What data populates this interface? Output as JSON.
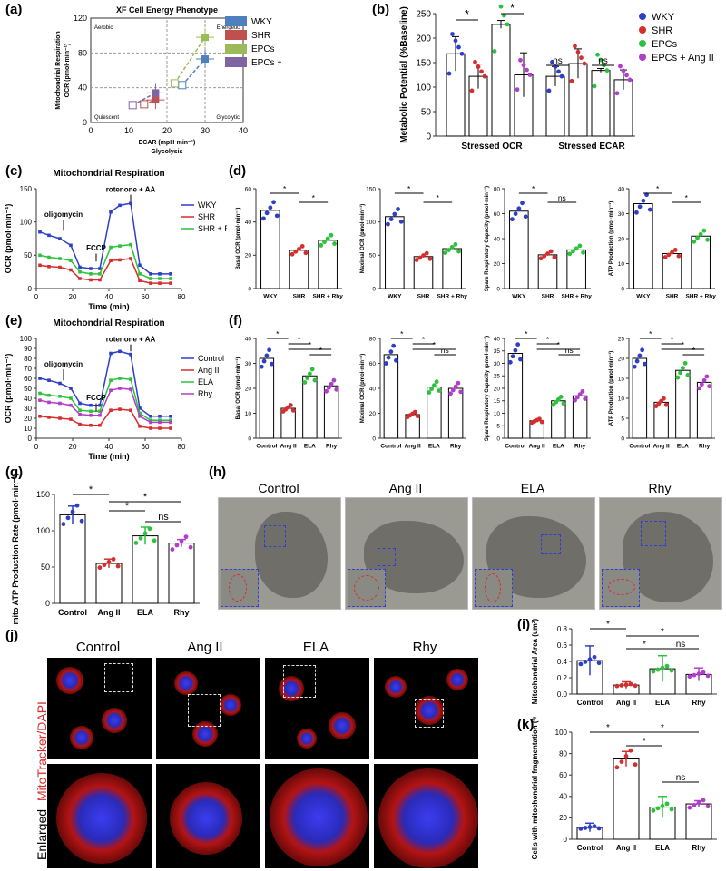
{
  "panel_labels": {
    "a": "(a)",
    "b": "(b)",
    "c": "(c)",
    "d": "(d)",
    "e": "(e)",
    "f": "(f)",
    "g": "(g)",
    "h": "(h)",
    "i": "(i)",
    "j": "(j)",
    "k": "(k)"
  },
  "chart_data": [
    {
      "id": "a",
      "type": "scatter",
      "title": "XF Cell Energy Phenotype",
      "xlabel": "ECAR (mpH·min⁻¹)",
      "xlabel2": "Glycolysis",
      "ylabel": "Mitochondrial Respiration",
      "ylabel2": "OCR (pmol·min⁻¹)",
      "xlim": [
        0,
        40
      ],
      "ylim": [
        0,
        120
      ],
      "xticks": [
        "0",
        "10",
        "20",
        "30",
        "40"
      ],
      "yticks": [
        "0",
        "40",
        "80",
        "120"
      ],
      "quadrants": [
        "Aerobic",
        "Energetic",
        "Quiescent",
        "Glycolytic"
      ],
      "legend": [
        "WKY",
        "SHR",
        "EPCs",
        "EPCs + Ang II"
      ],
      "colors": [
        "#4f7fbf",
        "#c0504d",
        "#9bbb59",
        "#8064a2"
      ],
      "series": [
        {
          "name": "WKY",
          "baseline": [
            24,
            43
          ],
          "stressed": [
            30,
            73
          ]
        },
        {
          "name": "SHR",
          "baseline": [
            14,
            21
          ],
          "stressed": [
            17,
            26
          ]
        },
        {
          "name": "EPCs",
          "baseline": [
            22,
            45
          ],
          "stressed": [
            30,
            98
          ]
        },
        {
          "name": "EPCs + Ang II",
          "baseline": [
            11,
            20
          ],
          "stressed": [
            17,
            34
          ]
        }
      ]
    },
    {
      "id": "b",
      "type": "bar",
      "ylabel": "Metabolic Potential (%Baseline)",
      "ylim": [
        0,
        250
      ],
      "yticks": [
        "0",
        "50",
        "100",
        "150",
        "200",
        "250"
      ],
      "categories": [
        "Stressed OCR",
        "Stressed ECAR"
      ],
      "legend": [
        "WKY",
        "SHR",
        "EPCs",
        "EPCs + Ang II"
      ],
      "series": [
        {
          "name": "WKY",
          "values": [
            168,
            122
          ]
        },
        {
          "name": "SHR",
          "values": [
            122,
            148
          ]
        },
        {
          "name": "EPCs",
          "values": [
            228,
            134
          ]
        },
        {
          "name": "EPCs + Ang II",
          "values": [
            125,
            115
          ]
        }
      ],
      "errors": [
        [
          35,
          20
        ],
        [
          25,
          30
        ],
        [
          8,
          4
        ],
        [
          45,
          20
        ]
      ],
      "sig": [
        "*",
        "*",
        "ns",
        "ns"
      ]
    },
    {
      "id": "c",
      "type": "line",
      "title": "Mitochondrial Respiration",
      "xlabel": "Time (min)",
      "ylabel": "OCR (pmol·min⁻¹)",
      "xlim": [
        0,
        80
      ],
      "ylim": [
        0,
        150
      ],
      "xticks": [
        "0",
        "20",
        "40",
        "60",
        "80"
      ],
      "yticks": [
        "0",
        "50",
        "100",
        "150"
      ],
      "annotations": [
        "oligomycin",
        "FCCP",
        "rotenone + AA"
      ],
      "x": [
        2,
        7,
        13,
        19,
        24,
        30,
        35,
        41,
        46,
        52,
        57,
        63,
        68,
        74
      ],
      "series": [
        {
          "name": "WKY",
          "color": "#2d3fc9",
          "values": [
            85,
            80,
            75,
            65,
            32,
            30,
            30,
            115,
            125,
            128,
            35,
            22,
            22,
            22
          ]
        },
        {
          "name": "SHR",
          "color": "#d62d2d",
          "values": [
            35,
            33,
            32,
            28,
            15,
            13,
            13,
            42,
            43,
            45,
            12,
            8,
            8,
            8
          ]
        },
        {
          "name": "SHR + Rhy",
          "color": "#2cc23c",
          "values": [
            50,
            47,
            45,
            42,
            25,
            22,
            22,
            62,
            64,
            66,
            22,
            15,
            15,
            15
          ]
        }
      ]
    },
    {
      "id": "d",
      "type": "bar",
      "categories": [
        "WKY",
        "SHR",
        "SHR + Rhy"
      ],
      "subplots": [
        {
          "ylabel": "Basal OCR (pmol·min⁻¹)",
          "ylim": [
            0,
            60
          ],
          "yticks": [
            "0",
            "20",
            "40",
            "60"
          ],
          "values": [
            47,
            23,
            29
          ],
          "sig": [
            "*",
            "*"
          ]
        },
        {
          "ylabel": "Maximal OCR (pmol·min⁻¹)",
          "ylim": [
            0,
            150
          ],
          "yticks": [
            "0",
            "50",
            "100",
            "150"
          ],
          "values": [
            108,
            48,
            60
          ],
          "sig": [
            "*",
            "*"
          ]
        },
        {
          "ylabel": "Spare Respiratory Capacity (pmol·min⁻¹)",
          "ylim": [
            0,
            80
          ],
          "yticks": [
            "0",
            "20",
            "40",
            "60",
            "80"
          ],
          "values": [
            62,
            27,
            31
          ],
          "sig": [
            "*",
            "ns"
          ]
        },
        {
          "ylabel": "ATP Production (pmol·min⁻¹)",
          "ylim": [
            0,
            40
          ],
          "yticks": [
            "0",
            "10",
            "20",
            "30",
            "40"
          ],
          "values": [
            34,
            14,
            21
          ],
          "sig": [
            "*",
            "*"
          ]
        }
      ]
    },
    {
      "id": "e",
      "type": "line",
      "title": "Mitochondrial Respiration",
      "xlabel": "Time (min)",
      "ylabel": "OCR (pmol·min⁻¹)",
      "xlim": [
        0,
        80
      ],
      "ylim": [
        0,
        100
      ],
      "xticks": [
        "0",
        "20",
        "40",
        "60",
        "80"
      ],
      "yticks": [
        "0",
        "10",
        "20",
        "30",
        "40",
        "50",
        "60",
        "70",
        "80",
        "90",
        "100"
      ],
      "annotations": [
        "oligomycin",
        "FCCP",
        "rotenone + AA"
      ],
      "x": [
        2,
        7,
        13,
        19,
        24,
        30,
        35,
        41,
        46,
        52,
        57,
        63,
        68,
        74
      ],
      "series": [
        {
          "name": "Control",
          "color": "#2d3fc9",
          "values": [
            60,
            58,
            55,
            50,
            35,
            33,
            33,
            85,
            87,
            84,
            30,
            22,
            22,
            22
          ]
        },
        {
          "name": "Ang II",
          "color": "#d62d2d",
          "values": [
            22,
            21,
            20,
            19,
            14,
            13,
            13,
            28,
            29,
            28,
            12,
            10,
            10,
            10
          ]
        },
        {
          "name": "ELA",
          "color": "#2cc23c",
          "values": [
            45,
            43,
            42,
            40,
            28,
            27,
            27,
            58,
            60,
            59,
            25,
            18,
            18,
            18
          ]
        },
        {
          "name": "Rhy",
          "color": "#b13ec9",
          "values": [
            38,
            36,
            35,
            33,
            24,
            23,
            23,
            48,
            50,
            49,
            22,
            16,
            16,
            16
          ]
        }
      ]
    },
    {
      "id": "f",
      "type": "bar",
      "categories": [
        "Control",
        "Ang II",
        "ELA",
        "Rhy"
      ],
      "subplots": [
        {
          "ylabel": "Basal OCR (pmol·min⁻¹)",
          "ylim": [
            0,
            40
          ],
          "yticks": [
            "0",
            "10",
            "20",
            "30",
            "40"
          ],
          "values": [
            32,
            12,
            25,
            21
          ],
          "sig": [
            "*",
            "*",
            "*",
            "*"
          ]
        },
        {
          "ylabel": "Maximal OCR (pmol·min⁻¹)",
          "ylim": [
            0,
            80
          ],
          "yticks": [
            "0",
            "20",
            "40",
            "60",
            "80"
          ],
          "values": [
            67,
            19,
            41,
            40
          ],
          "sig": [
            "*",
            "*",
            "*",
            "ns"
          ]
        },
        {
          "ylabel": "Spare Respiratory Capacity (pmol·min⁻¹)",
          "ylim": [
            0,
            40
          ],
          "yticks": [
            "0",
            "5",
            "10",
            "15",
            "20",
            "25",
            "30",
            "35",
            "40"
          ],
          "values": [
            34,
            7,
            15,
            17
          ],
          "sig": [
            "*",
            "*",
            "*",
            "ns"
          ]
        },
        {
          "ylabel": "ATP Production (pmol·min⁻¹)",
          "ylim": [
            0,
            25
          ],
          "yticks": [
            "0",
            "5",
            "10",
            "15",
            "20",
            "25"
          ],
          "values": [
            20,
            9,
            17,
            14
          ],
          "sig": [
            "*",
            "*",
            "*",
            "*"
          ]
        }
      ]
    },
    {
      "id": "g",
      "type": "bar",
      "ylabel": "mito ATP Production Rate (pmol·min⁻¹)",
      "ylim": [
        0,
        150
      ],
      "yticks": [
        "0",
        "50",
        "100",
        "150"
      ],
      "categories": [
        "Control",
        "Ang II",
        "ELA",
        "Rhy"
      ],
      "values": [
        122,
        55,
        93,
        83
      ],
      "errors": [
        12,
        6,
        12,
        5
      ],
      "sig": [
        "*",
        "*",
        "*",
        "ns"
      ]
    },
    {
      "id": "i",
      "type": "bar",
      "ylabel": "Mitochondrial Area (um²)",
      "ylim": [
        0,
        0.8
      ],
      "yticks": [
        "0.0",
        "0.2",
        "0.4",
        "0.6",
        "0.8"
      ],
      "categories": [
        "Control",
        "Ang II",
        "ELA",
        "Rhy"
      ],
      "values": [
        0.41,
        0.11,
        0.31,
        0.24
      ],
      "errors": [
        0.18,
        0.04,
        0.16,
        0.08
      ],
      "sig": [
        "*",
        "*",
        "*",
        "ns"
      ]
    },
    {
      "id": "k",
      "type": "bar",
      "ylabel": "Cells with mitochondrial fragmentation (%)",
      "ylim": [
        0,
        100
      ],
      "yticks": [
        "0",
        "20",
        "40",
        "60",
        "80",
        "100"
      ],
      "categories": [
        "Control",
        "Ang II",
        "ELA",
        "Rhy"
      ],
      "values": [
        11,
        75,
        30,
        33
      ],
      "errors": [
        4,
        7,
        10,
        3
      ],
      "sig": [
        "*",
        "*",
        "*",
        "ns"
      ]
    }
  ],
  "tem": {
    "titles": [
      "Control",
      "Ang II",
      "ELA",
      "Rhy"
    ]
  },
  "confocal": {
    "titles": [
      "Control",
      "Ang II",
      "ELA",
      "Rhy"
    ],
    "row_label": "MitoTracker/DAPI",
    "enlarged_label": "Enlarged"
  }
}
